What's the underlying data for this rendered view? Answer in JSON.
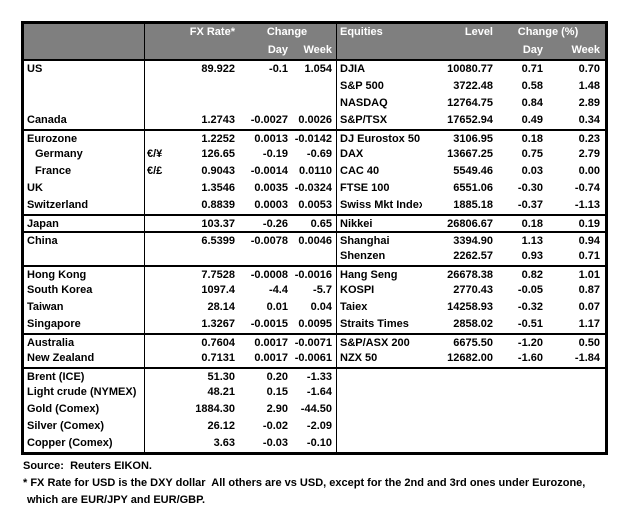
{
  "colors": {
    "header_bg": "#7f7f7f",
    "header_text": "#ffffff",
    "border": "#000000"
  },
  "header": {
    "fx_rate": "FX Rate*",
    "change": "Change",
    "day": "Day",
    "week": "Week",
    "equities": "Equities",
    "level": "Level",
    "change_pct": "Change (%)",
    "day2": "Day",
    "week2": "Week"
  },
  "table": {
    "rows": [
      {
        "label": "US",
        "sym": "",
        "rate": "89.922",
        "day": "-0.1",
        "week": "1.054",
        "eq": "DJIA",
        "level": "10080.77",
        "eday": "0.71",
        "eweek": "0.70"
      },
      {
        "label": "",
        "sym": "",
        "rate": "",
        "day": "",
        "week": "",
        "eq": "S&P 500",
        "level": "3722.48",
        "eday": "0.58",
        "eweek": "1.48"
      },
      {
        "label": "",
        "sym": "",
        "rate": "",
        "day": "",
        "week": "",
        "eq": "NASDAQ",
        "level": "12764.75",
        "eday": "0.84",
        "eweek": "2.89"
      },
      {
        "label": "Canada",
        "sym": "",
        "rate": "1.2743",
        "day": "-0.0027",
        "week": "0.0026",
        "eq": "S&P/TSX",
        "level": "17652.94",
        "eday": "0.49",
        "eweek": "0.34"
      },
      {
        "group": true,
        "label": "Eurozone",
        "sym": "",
        "rate": "1.2252",
        "day": "0.0013",
        "week": "-0.0142",
        "eq": "DJ Eurostox 50",
        "level": "3106.95",
        "eday": "0.18",
        "eweek": "0.23"
      },
      {
        "indent": true,
        "label": "Germany",
        "sym": "€/¥",
        "rate": "126.65",
        "day": "-0.19",
        "week": "-0.69",
        "eq": "DAX",
        "level": "13667.25",
        "eday": "0.75",
        "eweek": "2.79"
      },
      {
        "indent": true,
        "label": "France",
        "sym": "€/£",
        "rate": "0.9043",
        "day": "-0.0014",
        "week": "0.0110",
        "eq": "CAC 40",
        "level": "5549.46",
        "eday": "0.03",
        "eweek": "0.00"
      },
      {
        "label": "UK",
        "sym": "",
        "rate": "1.3546",
        "day": "0.0035",
        "week": "-0.0324",
        "eq": "FTSE 100",
        "level": "6551.06",
        "eday": "-0.30",
        "eweek": "-0.74"
      },
      {
        "label": "Switzerland",
        "sym": "",
        "rate": "0.8839",
        "day": "0.0003",
        "week": "0.0053",
        "eq": "Swiss Mkt Index",
        "level": "1885.18",
        "eday": "-0.37",
        "eweek": "-1.13"
      },
      {
        "group": true,
        "label": "Japan",
        "sym": "",
        "rate": "103.37",
        "day": "-0.26",
        "week": "0.65",
        "eq": "Nikkei",
        "level": "26806.67",
        "eday": "0.18",
        "eweek": "0.19"
      },
      {
        "group": true,
        "label": "China",
        "sym": "",
        "rate": "6.5399",
        "day": "-0.0078",
        "week": "0.0046",
        "eq": "Shanghai",
        "level": "3394.90",
        "eday": "1.13",
        "eweek": "0.94"
      },
      {
        "label": "",
        "sym": "",
        "rate": "",
        "day": "",
        "week": "",
        "eq": "Shenzen",
        "level": "2262.57",
        "eday": "0.93",
        "eweek": "0.71"
      },
      {
        "group": true,
        "label": "Hong Kong",
        "sym": "",
        "rate": "7.7528",
        "day": "-0.0008",
        "week": "-0.0016",
        "eq": "Hang Seng",
        "level": "26678.38",
        "eday": "0.82",
        "eweek": "1.01"
      },
      {
        "label": "South Korea",
        "sym": "",
        "rate": "1097.4",
        "day": "-4.4",
        "week": "-5.7",
        "eq": "KOSPI",
        "level": "2770.43",
        "eday": "-0.05",
        "eweek": "0.87"
      },
      {
        "label": "Taiwan",
        "sym": "",
        "rate": "28.14",
        "day": "0.01",
        "week": "0.04",
        "eq": "Taiex",
        "level": "14258.93",
        "eday": "-0.32",
        "eweek": "0.07"
      },
      {
        "label": "Singapore",
        "sym": "",
        "rate": "1.3267",
        "day": "-0.0015",
        "week": "0.0095",
        "eq": "Straits Times",
        "level": "2858.02",
        "eday": "-0.51",
        "eweek": "1.17"
      },
      {
        "group": true,
        "label": "Australia",
        "sym": "",
        "rate": "0.7604",
        "day": "0.0017",
        "week": "-0.0071",
        "eq": "S&P/ASX 200",
        "level": "6675.50",
        "eday": "-1.20",
        "eweek": "0.50"
      },
      {
        "label": "New Zealand",
        "sym": "",
        "rate": "0.7131",
        "day": "0.0017",
        "week": "-0.0061",
        "eq": "NZX 50",
        "level": "12682.00",
        "eday": "-1.60",
        "eweek": "-1.84"
      },
      {
        "group": true,
        "label": "Brent (ICE)",
        "sym": "",
        "rate": "51.30",
        "day": "0.20",
        "week": "-1.33",
        "eq": "",
        "level": "",
        "eday": "",
        "eweek": ""
      },
      {
        "label": "Light crude (NYMEX)",
        "sym": "",
        "rate": "48.21",
        "day": "0.15",
        "week": "-1.64",
        "eq": "",
        "level": "",
        "eday": "",
        "eweek": ""
      },
      {
        "label": "Gold (Comex)",
        "sym": "",
        "rate": "1884.30",
        "day": "2.90",
        "week": "-44.50",
        "eq": "",
        "level": "",
        "eday": "",
        "eweek": ""
      },
      {
        "label": "Silver (Comex)",
        "sym": "",
        "rate": "26.12",
        "day": "-0.02",
        "week": "-2.09",
        "eq": "",
        "level": "",
        "eday": "",
        "eweek": ""
      },
      {
        "label": "Copper (Comex)",
        "sym": "",
        "rate": "3.63",
        "day": "-0.03",
        "week": "-0.10",
        "eq": "",
        "level": "",
        "eday": "",
        "eweek": ""
      }
    ]
  },
  "footer": {
    "source": "Source:  Reuters EIKON.",
    "note1": "* FX Rate for USD is the DXY dollar  All others are vs USD, except for the 2nd and 3rd ones under Eurozone,",
    "note2": "which are EUR/JPY and EUR/GBP."
  }
}
